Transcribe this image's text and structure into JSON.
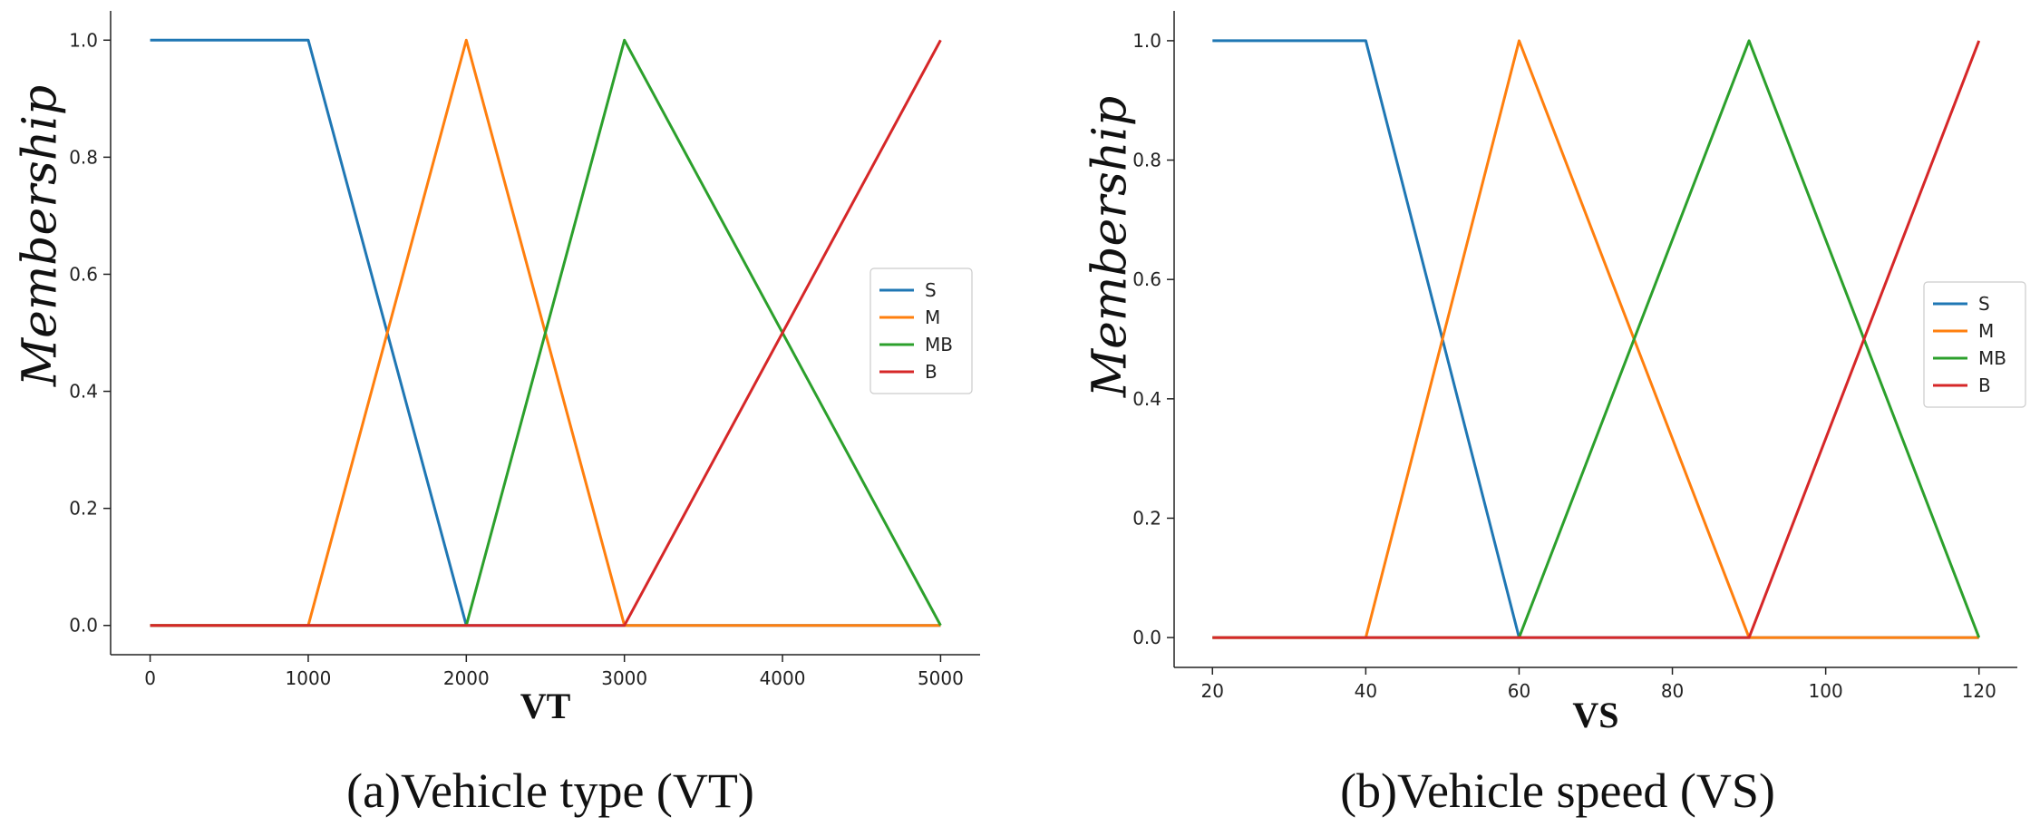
{
  "chart_data": [
    {
      "type": "line",
      "caption": "(a)Vehicle type (VT)",
      "xlabel": "VT",
      "ylabel": "Membership",
      "xlim": [
        -250,
        5250
      ],
      "ylim": [
        -0.05,
        1.05
      ],
      "xticks": [
        "0",
        "1000",
        "2000",
        "3000",
        "4000",
        "5000"
      ],
      "yticks": [
        "0.0",
        "0.2",
        "0.4",
        "0.6",
        "0.8",
        "1.0"
      ],
      "legend_position": "center-right",
      "series": [
        {
          "name": "S",
          "color": "#1f77b4",
          "x": [
            0,
            1000,
            2000,
            5000
          ],
          "y": [
            1,
            1,
            0,
            0
          ]
        },
        {
          "name": "M",
          "color": "#ff7f0e",
          "x": [
            0,
            1000,
            2000,
            3000,
            5000
          ],
          "y": [
            0,
            0,
            1,
            0,
            0
          ]
        },
        {
          "name": "MB",
          "color": "#2ca02c",
          "x": [
            0,
            2000,
            3000,
            5000
          ],
          "y": [
            0,
            0,
            1,
            0
          ]
        },
        {
          "name": "B",
          "color": "#d62728",
          "x": [
            0,
            3000,
            5000
          ],
          "y": [
            0,
            0,
            1
          ]
        }
      ]
    },
    {
      "type": "line",
      "caption": "(b)Vehicle speed (VS)",
      "xlabel": "VS",
      "ylabel": "Membership",
      "xlim": [
        15,
        125
      ],
      "ylim": [
        -0.05,
        1.05
      ],
      "xticks": [
        "20",
        "40",
        "60",
        "80",
        "100",
        "120"
      ],
      "yticks": [
        "0.0",
        "0.2",
        "0.4",
        "0.6",
        "0.8",
        "1.0"
      ],
      "legend_position": "center-right",
      "series": [
        {
          "name": "S",
          "color": "#1f77b4",
          "x": [
            20,
            40,
            60,
            120
          ],
          "y": [
            1,
            1,
            0,
            0
          ]
        },
        {
          "name": "M",
          "color": "#ff7f0e",
          "x": [
            20,
            40,
            60,
            90,
            120
          ],
          "y": [
            0,
            0,
            1,
            0,
            0
          ]
        },
        {
          "name": "MB",
          "color": "#2ca02c",
          "x": [
            20,
            60,
            90,
            120
          ],
          "y": [
            0,
            0,
            1,
            0
          ]
        },
        {
          "name": "B",
          "color": "#d62728",
          "x": [
            20,
            90,
            120
          ],
          "y": [
            0,
            0,
            1
          ]
        }
      ]
    }
  ]
}
